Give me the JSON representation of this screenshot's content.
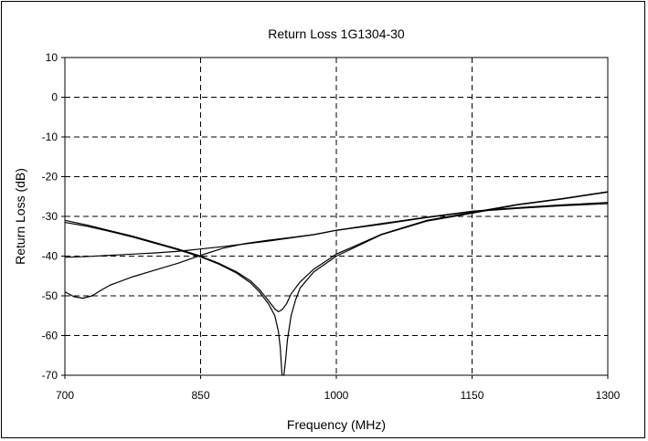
{
  "chart_data": {
    "type": "line",
    "title": "Return Loss 1G1304-30",
    "xlabel": "Frequency (MHz)",
    "ylabel": "Return Loss (dB)",
    "xlim": [
      700,
      1300
    ],
    "ylim": [
      -70,
      10
    ],
    "xticks": [
      700,
      850,
      1000,
      1150,
      1300
    ],
    "yticks": [
      10,
      0,
      -10,
      -20,
      -30,
      -40,
      -50,
      -60,
      -70
    ],
    "grid": true,
    "grid_style": "dashed",
    "legend": "none",
    "line_color": "#000000",
    "series": [
      {
        "x": [
          700,
          725,
          750,
          775,
          800,
          825,
          850,
          870,
          890,
          905,
          915,
          925,
          932,
          936,
          940,
          945,
          950,
          960,
          975,
          1000,
          1050,
          1100,
          1150,
          1200,
          1250,
          1300
        ],
        "y": [
          -31,
          -32.2,
          -33.6,
          -35,
          -36.6,
          -38.2,
          -40,
          -41.8,
          -44,
          -46.2,
          -48.4,
          -51.2,
          -53.3,
          -54,
          -53.5,
          -52,
          -49.5,
          -46.5,
          -43.3,
          -39.5,
          -34.5,
          -31,
          -29,
          -27,
          -25.5,
          -23.8
        ]
      },
      {
        "x": [
          700,
          725,
          750,
          775,
          800,
          825,
          850,
          870,
          890,
          905,
          915,
          925,
          932,
          936,
          938,
          940,
          942,
          944,
          946,
          950,
          955,
          960,
          975,
          1000,
          1050,
          1100,
          1150,
          1200,
          1250,
          1300
        ],
        "y": [
          -31.5,
          -32.5,
          -33.8,
          -35.2,
          -36.8,
          -38.4,
          -40.2,
          -42,
          -44.3,
          -46.7,
          -49,
          -52,
          -55,
          -59,
          -63,
          -70,
          -70,
          -66,
          -61,
          -55,
          -51,
          -48,
          -44,
          -40,
          -34.6,
          -31.2,
          -29.2,
          -27.1,
          -25.6,
          -23.9
        ]
      },
      {
        "x": [
          700,
          710,
          720,
          730,
          740,
          750,
          775,
          800,
          825,
          850,
          875,
          900,
          925,
          950,
          975,
          1000,
          1050,
          1100,
          1150,
          1200,
          1250,
          1300
        ],
        "y": [
          -49,
          -50.2,
          -50.6,
          -50,
          -48.6,
          -47.3,
          -45.2,
          -43.5,
          -41.8,
          -39.8,
          -38,
          -36.8,
          -36,
          -35.3,
          -34.6,
          -33.5,
          -32,
          -30.3,
          -28.8,
          -28,
          -27.3,
          -26.8
        ]
      },
      {
        "x": [
          700,
          725,
          750,
          775,
          800,
          825,
          850,
          875,
          900,
          925,
          950,
          975,
          1000,
          1050,
          1100,
          1150,
          1200,
          1250,
          1300
        ],
        "y": [
          -40.3,
          -40.1,
          -39.8,
          -39.5,
          -39.2,
          -38.8,
          -38.2,
          -37.6,
          -36.9,
          -36.2,
          -35.4,
          -34.6,
          -33.5,
          -31.8,
          -30.2,
          -28.7,
          -27.8,
          -27.1,
          -26.5
        ]
      }
    ]
  }
}
